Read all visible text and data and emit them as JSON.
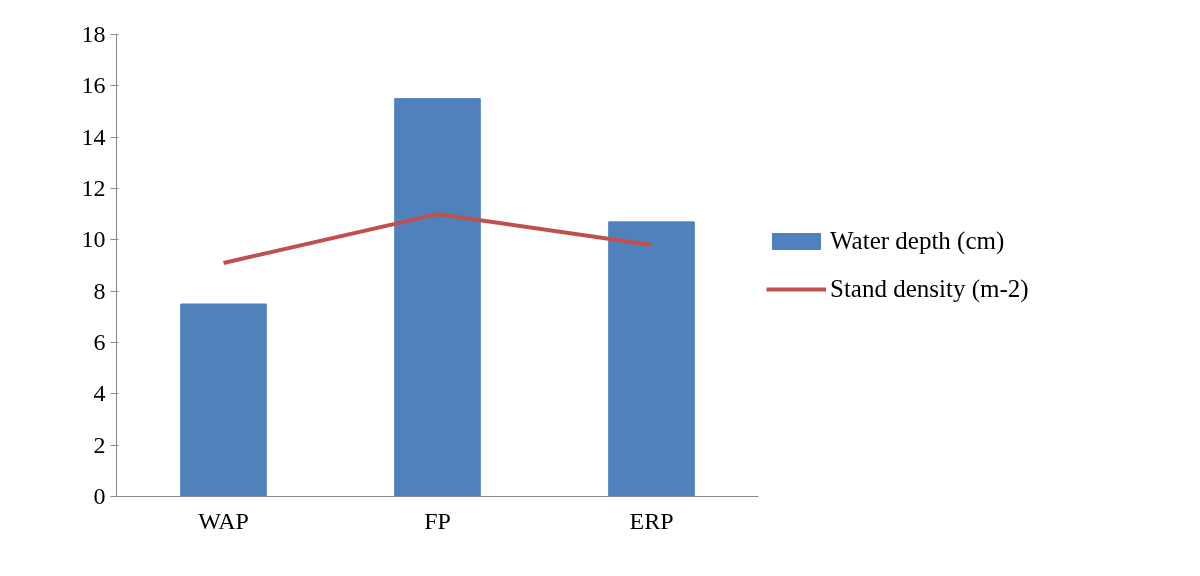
{
  "chart_data": {
    "type": "bar",
    "categories": [
      "WAP",
      "FP",
      "ERP"
    ],
    "series": [
      {
        "name": "Water depth (cm)",
        "color": "#4f81bd",
        "values": [
          7.5,
          15.5,
          10.7
        ]
      },
      {
        "name": "Stand density (m-2)",
        "type": "line",
        "color": "#c0504d",
        "values": [
          9.1,
          11.0,
          9.8
        ]
      }
    ],
    "ylim": [
      0,
      18
    ],
    "yticks": [
      0,
      2,
      4,
      6,
      8,
      10,
      12,
      14,
      16,
      18
    ],
    "grid": false,
    "legend": "right",
    "marker": "none"
  }
}
